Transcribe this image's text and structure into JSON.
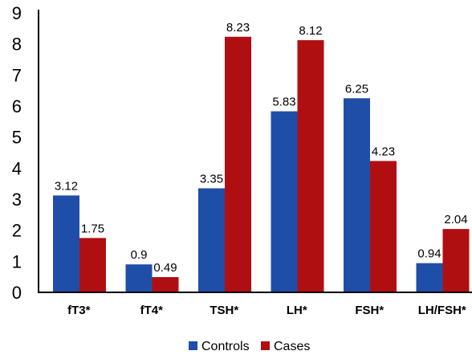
{
  "chart_data": {
    "type": "bar",
    "categories": [
      "fT3*",
      "fT4*",
      "TSH*",
      "LH*",
      "FSH*",
      "LH/FSH*"
    ],
    "series": [
      {
        "name": "Controls",
        "color": "#1F4EA8",
        "values": [
          3.12,
          0.9,
          3.35,
          5.83,
          6.25,
          0.94
        ],
        "labels": [
          "3.12",
          "0.9",
          "3.35",
          "5.83",
          "6.25",
          "0.94"
        ]
      },
      {
        "name": "Cases",
        "color": "#B00F12",
        "values": [
          1.75,
          0.49,
          8.23,
          8.12,
          4.23,
          2.04
        ],
        "labels": [
          "1.75",
          "0.49",
          "8.23",
          "8.12",
          "4.23",
          "2.04"
        ]
      }
    ],
    "yticks": [
      "0",
      "1",
      "2",
      "3",
      "4",
      "5",
      "6",
      "7",
      "8",
      "9"
    ],
    "ylim": [
      0,
      9
    ],
    "grid": false,
    "legend_position": "bottom",
    "title": "",
    "xlabel": "",
    "ylabel": ""
  }
}
